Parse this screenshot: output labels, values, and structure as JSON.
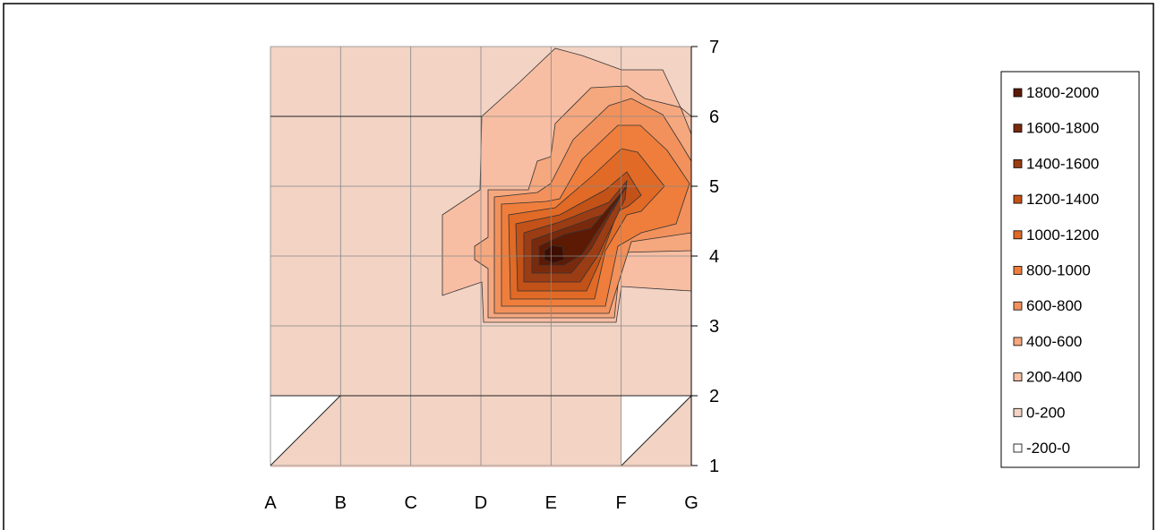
{
  "chart_data": {
    "type": "heatmap",
    "subtype": "contour",
    "title": "",
    "xlabel": "",
    "ylabel": "",
    "x_categories": [
      "A",
      "B",
      "C",
      "D",
      "E",
      "F",
      "G"
    ],
    "y_values": [
      1,
      2,
      3,
      4,
      5,
      6,
      7
    ],
    "ylim": [
      1,
      7
    ],
    "y_axis_side": "right",
    "grid": true,
    "legend_position": "right",
    "legend": [
      {
        "label": "1800-2000",
        "color": "#5c1a04"
      },
      {
        "label": "1600-1800",
        "color": "#7a2a0c"
      },
      {
        "label": "1400-1600",
        "color": "#9a3c14"
      },
      {
        "label": "1200-1400",
        "color": "#c25218"
      },
      {
        "label": "1000-1200",
        "color": "#e06a26"
      },
      {
        "label": "800-1000",
        "color": "#ef7e3c"
      },
      {
        "label": "600-800",
        "color": "#f2915c"
      },
      {
        "label": "400-600",
        "color": "#f5a77e"
      },
      {
        "label": "200-400",
        "color": "#f7bea3"
      },
      {
        "label": "0-200",
        "color": "#f2d3c4"
      },
      {
        "label": "-200-0",
        "color": "#ffffff"
      }
    ],
    "grid_values": [
      {
        "y": 7,
        "values": [
          100,
          100,
          100,
          100,
          250,
          450,
          350
        ]
      },
      {
        "y": 6,
        "values": [
          100,
          100,
          100,
          100,
          400,
          700,
          500
        ]
      },
      {
        "y": 5,
        "values": [
          100,
          100,
          100,
          300,
          700,
          1100,
          800
        ]
      },
      {
        "y": 4,
        "values": [
          100,
          100,
          100,
          400,
          2000,
          700,
          300
        ]
      },
      {
        "y": 3,
        "values": [
          100,
          100,
          100,
          300,
          350,
          250,
          100
        ]
      },
      {
        "y": 2,
        "values": [
          100,
          100,
          100,
          100,
          100,
          100,
          100
        ]
      },
      {
        "y": 1,
        "values": [
          -100,
          100,
          100,
          100,
          100,
          -100,
          100
        ]
      }
    ],
    "peak": {
      "x": "E",
      "y": 4,
      "range": "1800-2000"
    }
  }
}
